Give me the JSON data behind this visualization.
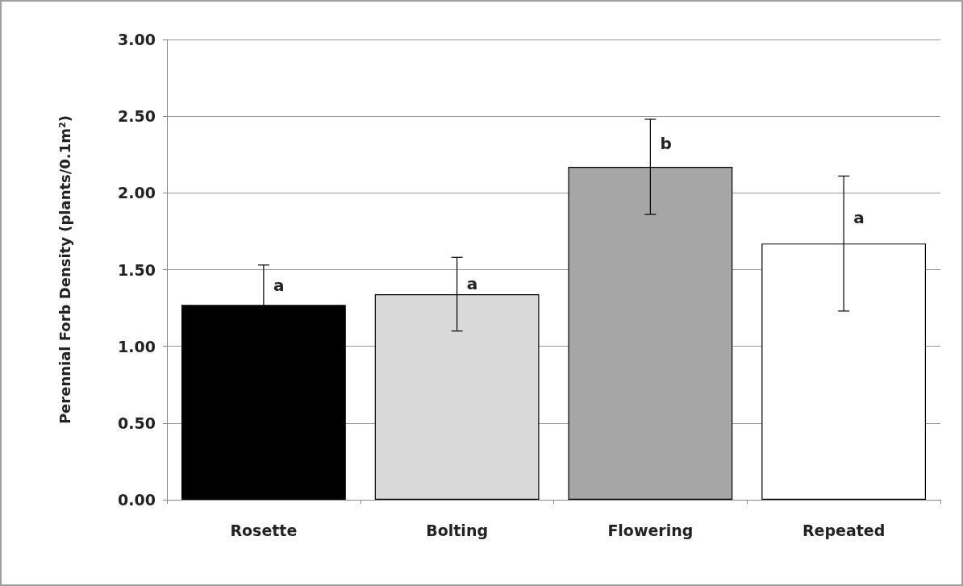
{
  "chart_data": {
    "type": "bar",
    "ylabel": "Perennial Forb Density (plants/0.1m²)",
    "categories": [
      "Rosette",
      "Bolting",
      "Flowering",
      "Repeated"
    ],
    "values": [
      1.27,
      1.34,
      2.17,
      1.67
    ],
    "colors": [
      "#000000",
      "#d9d9d9",
      "#a6a6a6",
      "#ffffff"
    ],
    "errors": [
      0.26,
      0.24,
      0.31,
      0.44
    ],
    "ylim": [
      0,
      3
    ],
    "yticks": [
      {
        "value": 0,
        "label": "0.00"
      },
      {
        "value": 0.5,
        "label": "0.50"
      },
      {
        "value": 1,
        "label": "1.00"
      },
      {
        "value": 1.5,
        "label": "1.50"
      },
      {
        "value": 2,
        "label": "2.00"
      },
      {
        "value": 2.5,
        "label": "2.50"
      },
      {
        "value": 3,
        "label": "3.00"
      }
    ],
    "grid": "y",
    "annotations": [
      {
        "text": "a",
        "x": "Rosette",
        "y": 1.4
      },
      {
        "text": "a",
        "x": "Bolting",
        "y": 1.41
      },
      {
        "text": "b",
        "x": "Flowering",
        "y": 2.32
      },
      {
        "text": "a",
        "x": "Repeated",
        "y": 1.84
      }
    ]
  }
}
